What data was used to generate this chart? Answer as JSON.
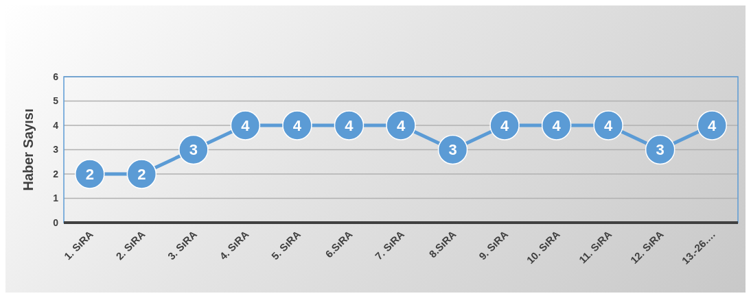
{
  "chart_data": {
    "type": "line",
    "ylabel": "Haber Sayısı",
    "categories": [
      "1. SıRA",
      "2. SıRA",
      "3. SıRA",
      "4. SıRA",
      "5. SıRA",
      "6.SıRA",
      "7. SıRA",
      "8.SıRA",
      "9. SıRA",
      "10. SıRA",
      "11. SıRA",
      "12. SıRA",
      "13.-26.…"
    ],
    "series": [
      {
        "color": "#5b9bd5",
        "values": [
          2,
          2,
          3,
          4,
          4,
          4,
          4,
          3,
          4,
          4,
          4,
          3,
          4
        ]
      }
    ],
    "ylim": [
      0,
      6
    ],
    "yticks": [
      0,
      1,
      2,
      3,
      4,
      5,
      6
    ],
    "grid": "y",
    "marker": "circle",
    "line_style": "solid",
    "data_labels": true
  }
}
